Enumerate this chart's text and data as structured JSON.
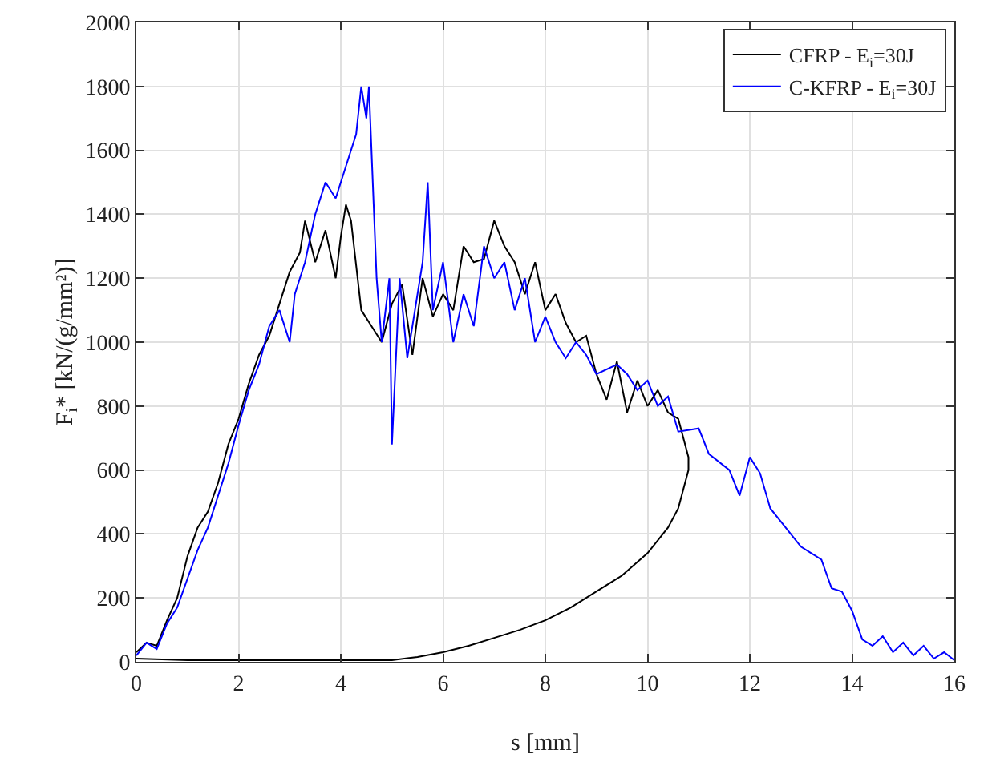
{
  "chart_data": {
    "type": "line",
    "xlabel": "s [mm]",
    "ylabel": "F$_{i}$* [kN/(g/mm²)]",
    "xlim": [
      0,
      16
    ],
    "xticks": [
      0,
      2,
      4,
      6,
      8,
      10,
      12,
      14,
      16
    ],
    "ylim": [
      0,
      2000
    ],
    "yticks": [
      0,
      200,
      400,
      600,
      800,
      1000,
      1200,
      1400,
      1600,
      1800,
      2000
    ],
    "grid": true,
    "legend": "top right",
    "line_style": "solid",
    "marker": "none",
    "series": [
      {
        "name": "CFRP - E$_{i}$=30J",
        "color": "#000000",
        "x": [
          0,
          0.2,
          0.4,
          0.6,
          0.8,
          1.0,
          1.2,
          1.4,
          1.6,
          1.8,
          2.0,
          2.2,
          2.4,
          2.6,
          2.8,
          3.0,
          3.2,
          3.3,
          3.5,
          3.7,
          3.9,
          4.0,
          4.1,
          4.2,
          4.4,
          4.6,
          4.8,
          5.0,
          5.2,
          5.4,
          5.6,
          5.8,
          6.0,
          6.2,
          6.4,
          6.6,
          6.8,
          7.0,
          7.2,
          7.4,
          7.6,
          7.8,
          8.0,
          8.2,
          8.4,
          8.6,
          8.8,
          9.0,
          9.2,
          9.4,
          9.6,
          9.8,
          10.0,
          10.2,
          10.4,
          10.6,
          10.8,
          10.8,
          10.6,
          10.4,
          10.0,
          9.5,
          9.0,
          8.5,
          8.0,
          7.5,
          7.0,
          6.5,
          6.0,
          5.5,
          5.0,
          4.0,
          3.0,
          2.0,
          1.0,
          0
        ],
        "values": [
          30,
          60,
          50,
          130,
          200,
          330,
          420,
          470,
          560,
          680,
          760,
          870,
          960,
          1020,
          1120,
          1220,
          1280,
          1380,
          1250,
          1350,
          1200,
          1330,
          1430,
          1380,
          1100,
          1050,
          1000,
          1120,
          1180,
          960,
          1200,
          1080,
          1150,
          1100,
          1300,
          1250,
          1260,
          1380,
          1300,
          1250,
          1150,
          1250,
          1100,
          1150,
          1060,
          1000,
          1020,
          900,
          820,
          940,
          780,
          880,
          800,
          850,
          780,
          760,
          640,
          600,
          480,
          420,
          340,
          270,
          220,
          170,
          130,
          100,
          75,
          50,
          30,
          15,
          5,
          5,
          5,
          5,
          5,
          10
        ]
      },
      {
        "name": "C-KFRP - E$_{i}$=30J",
        "color": "#0000ff",
        "x": [
          0,
          0.2,
          0.4,
          0.6,
          0.8,
          1.0,
          1.2,
          1.4,
          1.6,
          1.8,
          2.0,
          2.2,
          2.4,
          2.6,
          2.8,
          3.0,
          3.1,
          3.3,
          3.5,
          3.7,
          3.9,
          4.1,
          4.3,
          4.4,
          4.5,
          4.55,
          4.7,
          4.8,
          4.95,
          5.0,
          5.15,
          5.3,
          5.6,
          5.7,
          5.8,
          6.0,
          6.2,
          6.4,
          6.6,
          6.8,
          7.0,
          7.2,
          7.4,
          7.6,
          7.8,
          8.0,
          8.2,
          8.4,
          8.6,
          8.8,
          9.0,
          9.4,
          9.6,
          9.8,
          10.0,
          10.2,
          10.4,
          10.6,
          11.0,
          11.2,
          11.6,
          11.8,
          12.0,
          12.2,
          12.4,
          12.6,
          12.8,
          13.0,
          13.2,
          13.4,
          13.6,
          13.8,
          14.0,
          14.2,
          14.4,
          14.6,
          14.8,
          15.0,
          15.2,
          15.4,
          15.6,
          15.8,
          16
        ],
        "values": [
          20,
          60,
          40,
          120,
          170,
          260,
          350,
          420,
          520,
          620,
          740,
          850,
          930,
          1050,
          1100,
          1000,
          1150,
          1250,
          1400,
          1500,
          1450,
          1550,
          1650,
          1800,
          1700,
          1800,
          1200,
          1000,
          1200,
          680,
          1200,
          950,
          1250,
          1500,
          1100,
          1250,
          1000,
          1150,
          1050,
          1300,
          1200,
          1250,
          1100,
          1200,
          1000,
          1080,
          1000,
          950,
          1000,
          960,
          900,
          930,
          900,
          850,
          880,
          800,
          830,
          720,
          730,
          650,
          600,
          520,
          640,
          590,
          480,
          440,
          400,
          360,
          340,
          320,
          230,
          220,
          160,
          70,
          50,
          80,
          30,
          60,
          20,
          50,
          10,
          30,
          5
        ]
      }
    ]
  }
}
